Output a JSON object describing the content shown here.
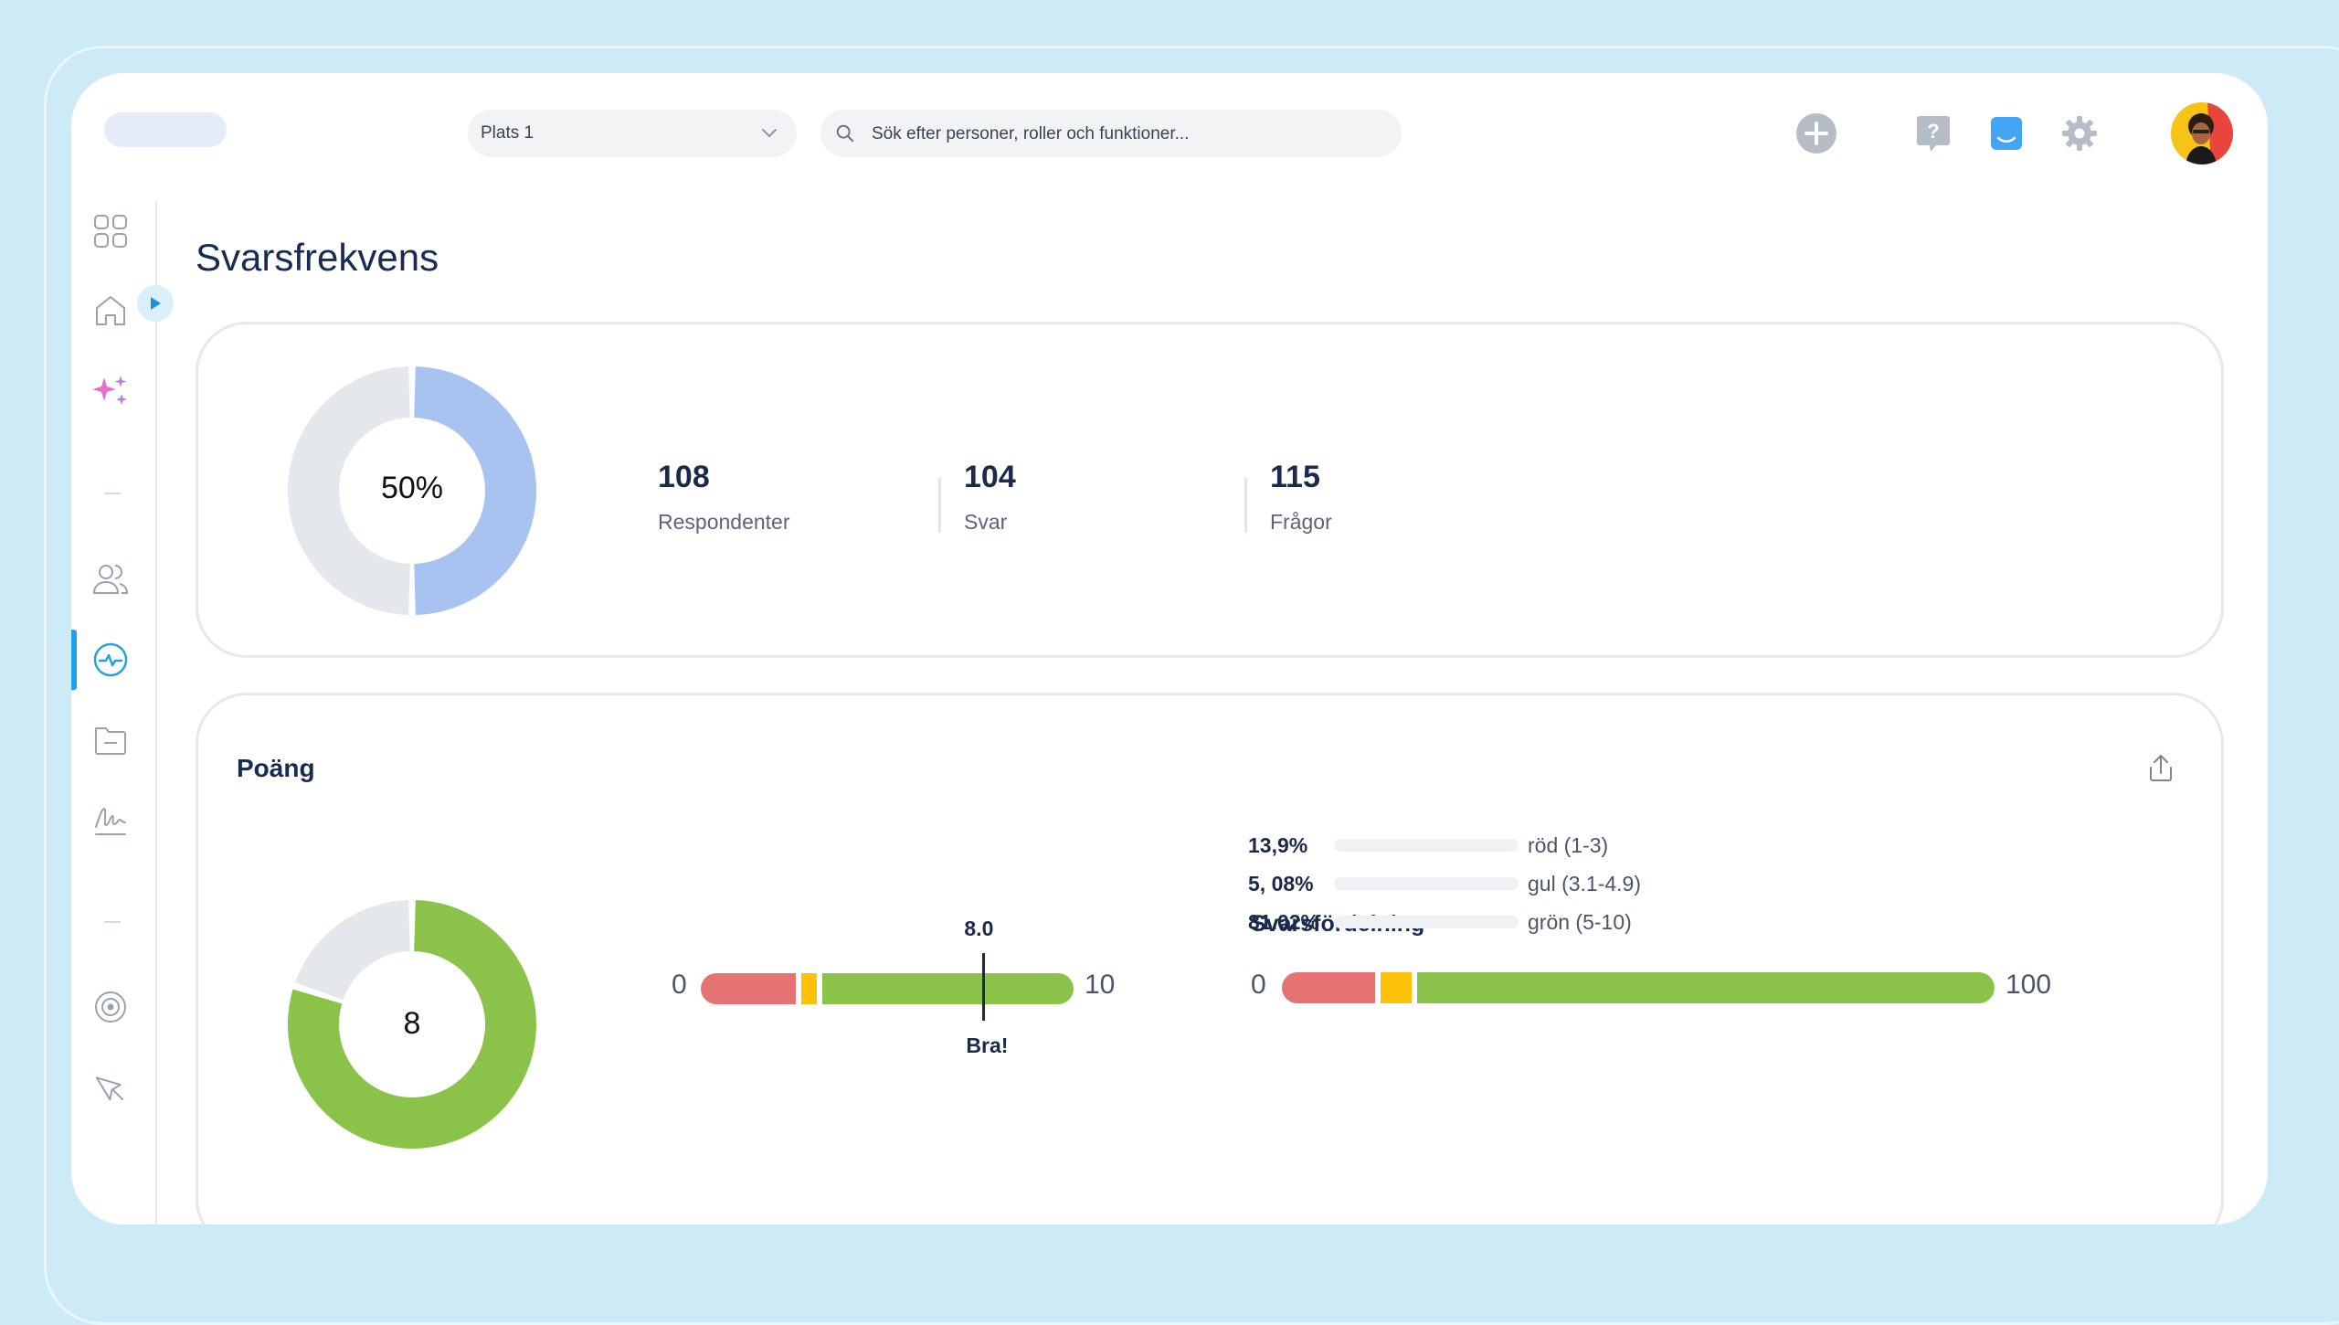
{
  "header": {
    "location_select": "Plats 1",
    "search_placeholder": "Sök efter personer, roller och funktioner..."
  },
  "icons": {
    "header": [
      "plus-circle-icon",
      "help-icon",
      "chat-icon",
      "gear-icon"
    ],
    "sidebar": [
      "grid-icon",
      "home-icon",
      "sparkle-icon",
      "people-icon",
      "activity-icon",
      "folder-icon",
      "signature-icon",
      "target-icon",
      "cursor-icon"
    ]
  },
  "colors": {
    "accent": "#1fa0e8",
    "donut_blue": "#a8c3ef",
    "red": "#e57373",
    "yellow": "#ffc107",
    "green": "#8bc34a",
    "neutral": "#e4e7eb"
  },
  "page_title": "Svarsfrekvens",
  "response_rate": {
    "percent_label": "50%",
    "percent": 50,
    "stats": [
      {
        "value": "108",
        "label": "Respondenter"
      },
      {
        "value": "104",
        "label": "Svar"
      },
      {
        "value": "115",
        "label": "Frågor"
      }
    ]
  },
  "score": {
    "title": "Poäng",
    "value_label": "8",
    "value": 8,
    "max": 10,
    "scale_min_label": "0",
    "scale_max_label": "10",
    "marker_value_label": "8.0",
    "marker_value": 8.0,
    "marker_text": "Bra!"
  },
  "distribution": {
    "title": "Svarsfördelning",
    "scale_min_label": "0",
    "scale_max_label": "100",
    "rows": [
      {
        "pct": "13,9%",
        "value": 13.9,
        "label": "röd (1-3)",
        "color": "red"
      },
      {
        "pct": "5, 08%",
        "value": 5.08,
        "label": "gul (3.1-4.9)",
        "color": "yellow"
      },
      {
        "pct": "81.02%",
        "value": 81.02,
        "label": "grön (5-10)",
        "color": "green"
      }
    ]
  }
}
